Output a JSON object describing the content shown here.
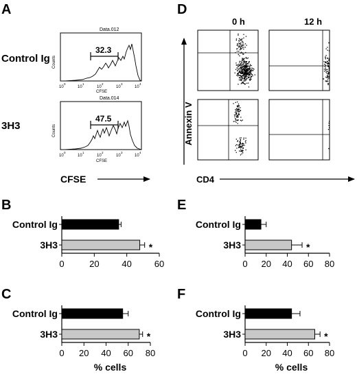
{
  "panels": {
    "A": {
      "letter": "A",
      "axis_label": "CFSE",
      "histograms": [
        {
          "row_label": "Control Ig",
          "file": "Data.012",
          "ylabel": "Counts",
          "xlabel": "CFSE",
          "gate_value": "32.3",
          "ticks": [
            "10",
            "0",
            "10",
            "1",
            "10",
            "2",
            "10",
            "3",
            "10",
            "4"
          ]
        },
        {
          "row_label": "3H3",
          "file": "Data.014",
          "ylabel": "Counts",
          "xlabel": "CFSE",
          "gate_value": "47.5",
          "ticks": [
            "10",
            "0",
            "10",
            "1",
            "10",
            "2",
            "10",
            "3",
            "10",
            "4"
          ]
        }
      ]
    },
    "D": {
      "letter": "D",
      "col_labels": [
        "0 h",
        "12 h"
      ],
      "ylabel": "Annexin V",
      "xlabel": "CD4"
    },
    "B": {
      "letter": "B"
    },
    "C": {
      "letter": "C"
    },
    "E": {
      "letter": "E"
    },
    "F": {
      "letter": "F"
    },
    "shared": {
      "xlabel": "% cells",
      "significance": "*"
    }
  },
  "chart_data": [
    {
      "panel": "B",
      "type": "bar",
      "orientation": "horizontal",
      "categories": [
        "Control Ig",
        "3H3"
      ],
      "values": [
        35,
        48
      ],
      "errors": [
        1.5,
        3
      ],
      "colors": [
        "#000000",
        "#c8c8c8"
      ],
      "xlim": [
        0,
        60
      ],
      "xticks": [
        "0",
        "20",
        "40",
        "60"
      ],
      "xlabel": "",
      "significance": [
        null,
        "*"
      ]
    },
    {
      "panel": "C",
      "type": "bar",
      "orientation": "horizontal",
      "categories": [
        "Control Ig",
        "3H3"
      ],
      "values": [
        55,
        70
      ],
      "errors": [
        5,
        3
      ],
      "colors": [
        "#000000",
        "#c8c8c8"
      ],
      "xlim": [
        0,
        80
      ],
      "xticks": [
        "0",
        "20",
        "40",
        "60",
        "80"
      ],
      "xlabel": "% cells",
      "significance": [
        null,
        "*"
      ]
    },
    {
      "panel": "E",
      "type": "bar",
      "orientation": "horizontal",
      "categories": [
        "Control Ig",
        "3H3"
      ],
      "values": [
        15,
        44
      ],
      "errors": [
        5,
        10
      ],
      "colors": [
        "#000000",
        "#c8c8c8"
      ],
      "xlim": [
        0,
        80
      ],
      "xticks": [
        "0",
        "20",
        "40",
        "60",
        "80"
      ],
      "xlabel": "",
      "significance": [
        null,
        "*"
      ]
    },
    {
      "panel": "F",
      "type": "bar",
      "orientation": "horizontal",
      "categories": [
        "Control Ig",
        "3H3"
      ],
      "values": [
        44,
        66
      ],
      "errors": [
        8,
        5
      ],
      "colors": [
        "#000000",
        "#c8c8c8"
      ],
      "xlim": [
        0,
        80
      ],
      "xticks": [
        "0",
        "20",
        "40",
        "60",
        "80"
      ],
      "xlabel": "% cells",
      "significance": [
        null,
        "*"
      ]
    }
  ]
}
